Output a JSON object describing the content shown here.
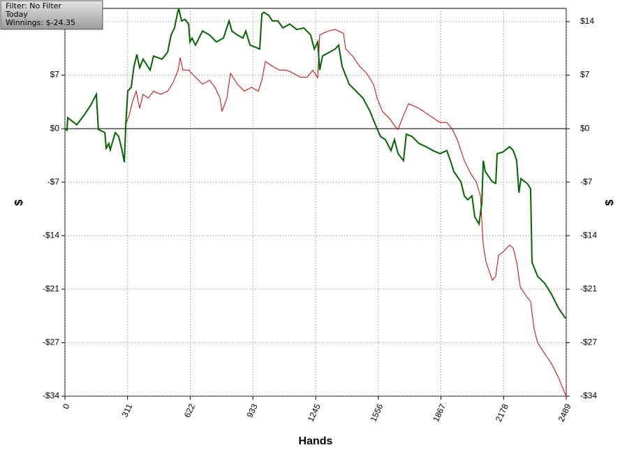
{
  "chart_data": {
    "type": "line",
    "annotations": [
      "Filter: No Filter",
      "Today",
      "Winnings: $-24.35"
    ],
    "xlabel": "Hands",
    "ylabel": "$",
    "y2label": "$",
    "xlim": [
      0,
      2489
    ],
    "xticks": [
      0,
      311,
      622,
      933,
      1245,
      1556,
      1867,
      2178,
      2489
    ],
    "ylim": [
      -34.25,
      15.4
    ],
    "yticks": [
      {
        "value": 13.7,
        "label": "$14"
      },
      {
        "value": 6.85,
        "label": "$7"
      },
      {
        "value": 0,
        "label": "$0"
      },
      {
        "value": -6.85,
        "label": "-$7"
      },
      {
        "value": -13.7,
        "label": "-$14"
      },
      {
        "value": -20.55,
        "label": "-$21"
      },
      {
        "value": -27.4,
        "label": "-$27"
      },
      {
        "value": -34.25,
        "label": "-$34"
      }
    ],
    "grid": true,
    "series": [
      {
        "color": "#006400",
        "x": [
          0,
          10,
          14,
          59,
          94,
          128,
          156,
          166,
          198,
          205,
          218,
          225,
          250,
          267,
          284,
          295,
          302,
          312,
          329,
          343,
          357,
          371,
          388,
          423,
          440,
          482,
          510,
          527,
          544,
          558,
          565,
          579,
          596,
          614,
          621,
          631,
          648,
          683,
          718,
          752,
          787,
          815,
          829,
          856,
          884,
          898,
          919,
          967,
          978,
          988,
          1012,
          1030,
          1057,
          1082,
          1116,
          1151,
          1186,
          1220,
          1238,
          1255,
          1265,
          1279,
          1314,
          1342,
          1359,
          1376,
          1411,
          1446,
          1480,
          1515,
          1543,
          1567,
          1591,
          1619,
          1636,
          1654,
          1681,
          1695,
          1723,
          1758,
          1792,
          1827,
          1862,
          1896,
          1914,
          1931,
          1966,
          1983,
          2000,
          2021,
          2035,
          2056,
          2070,
          2077,
          2087,
          2122,
          2139,
          2146,
          2174,
          2208,
          2226,
          2243,
          2254,
          2264,
          2295,
          2312,
          2319,
          2347,
          2382,
          2416,
          2451,
          2486
        ],
        "values": [
          0,
          -0.2,
          1.4,
          0.5,
          1.7,
          3.0,
          4.4,
          -0.1,
          -0.5,
          -2.5,
          -1.9,
          -2.7,
          -0.5,
          -1.0,
          -2.8,
          -4.3,
          0.5,
          4.8,
          5.3,
          8.0,
          9.5,
          7.8,
          8.9,
          7.5,
          9.3,
          8.9,
          9.8,
          12.0,
          12.9,
          14.7,
          15.4,
          13.8,
          14.0,
          13.4,
          11.1,
          11.6,
          10.7,
          12.5,
          12.0,
          11.1,
          11.6,
          13.8,
          12.5,
          12.0,
          11.6,
          12.5,
          10.7,
          10.2,
          14.7,
          14.9,
          14.5,
          13.8,
          13.8,
          12.9,
          13.4,
          12.7,
          12.9,
          12.0,
          10.2,
          11.1,
          7.5,
          9.3,
          9.8,
          10.2,
          10.7,
          8.0,
          5.7,
          4.8,
          3.9,
          2.2,
          0.4,
          -1.0,
          -1.4,
          -2.8,
          -1.4,
          -3.2,
          -4.1,
          -0.7,
          -1.0,
          -1.9,
          -2.3,
          -2.8,
          -3.2,
          -2.8,
          -4.1,
          -5.5,
          -6.8,
          -8.6,
          -9.1,
          -8.6,
          -11.3,
          -12.2,
          -9.5,
          -4.1,
          -5.5,
          -6.8,
          -7.0,
          -3.2,
          -3.0,
          -2.3,
          -2.8,
          -4.1,
          -8.2,
          -6.4,
          -7.0,
          -7.7,
          -17.1,
          -18.9,
          -19.8,
          -21.2,
          -23.0,
          -24.3
        ]
      },
      {
        "color": "#cc0000",
        "x": [
          302,
          319,
          336,
          354,
          371,
          388,
          413,
          440,
          475,
          510,
          537,
          562,
          572,
          586,
          614,
          648,
          683,
          718,
          745,
          770,
          780,
          804,
          822,
          856,
          891,
          926,
          960,
          978,
          995,
          1030,
          1064,
          1099,
          1134,
          1168,
          1203,
          1231,
          1255,
          1265,
          1307,
          1342,
          1383,
          1394,
          1428,
          1463,
          1498,
          1532,
          1550,
          1577,
          1612,
          1636,
          1654,
          1681,
          1706,
          1758,
          1827,
          1862,
          1896,
          1924,
          1948,
          1983,
          2018,
          2042,
          2063,
          2077,
          2091,
          2122,
          2139,
          2153,
          2174,
          2208,
          2226,
          2243,
          2261,
          2295,
          2312,
          2330,
          2347,
          2382,
          2416,
          2451,
          2489
        ],
        "values": [
          0.6,
          1.7,
          3.5,
          4.8,
          2.6,
          4.4,
          3.9,
          4.8,
          4.4,
          4.8,
          5.9,
          7.5,
          9.1,
          7.5,
          7.5,
          6.6,
          5.7,
          6.2,
          5.3,
          3.9,
          2.2,
          3.9,
          7.1,
          5.7,
          4.8,
          5.3,
          4.8,
          6.2,
          8.6,
          8.0,
          7.5,
          7.5,
          7.1,
          6.6,
          6.6,
          7.5,
          6.5,
          12.0,
          12.5,
          12.7,
          12.2,
          10.2,
          9.3,
          8.0,
          7.1,
          5.7,
          3.9,
          2.2,
          1.3,
          0.4,
          -0.1,
          1.7,
          3.2,
          2.6,
          1.4,
          0.8,
          0.8,
          -0.1,
          -1.4,
          -4.1,
          -5.9,
          -6.8,
          -8.6,
          -14.9,
          -17.1,
          -19.4,
          -18.9,
          -16.2,
          -15.8,
          -14.9,
          -15.3,
          -17.1,
          -20.3,
          -21.6,
          -22.1,
          -25.7,
          -27.4,
          -28.8,
          -30.1,
          -31.9,
          -34.3
        ]
      }
    ]
  }
}
